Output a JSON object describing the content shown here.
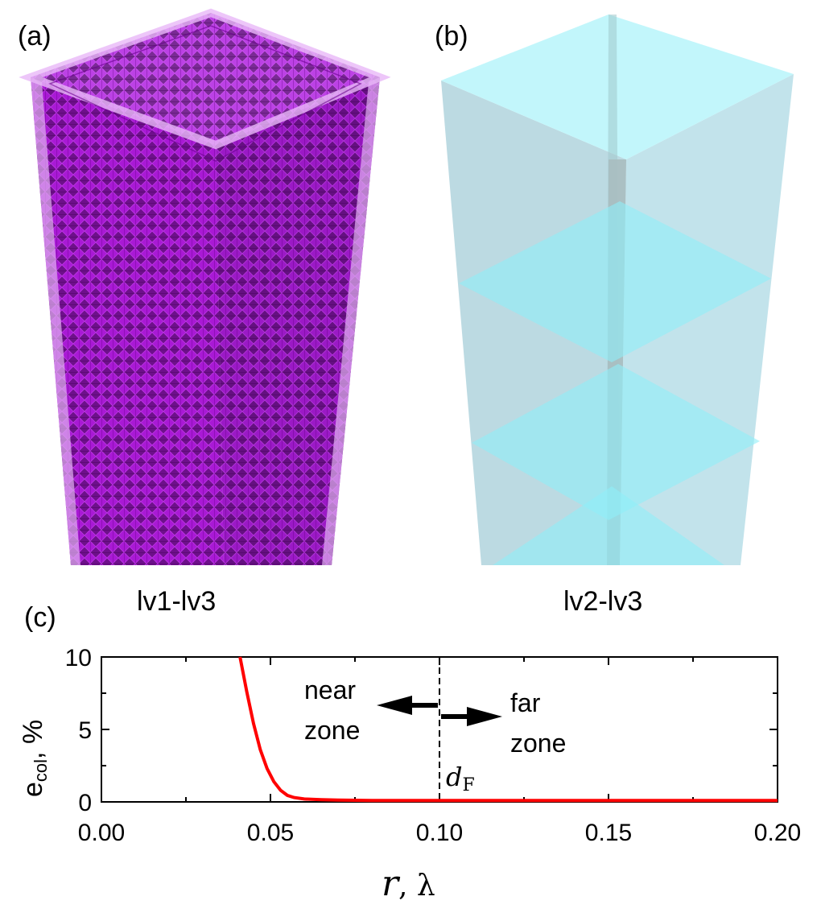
{
  "panels": {
    "a": {
      "label": "(a)",
      "caption": "lv1-lv3",
      "color": "#a000d0"
    },
    "b": {
      "label": "(b)",
      "caption": "lv2-lv3",
      "color": "#8fe8f0"
    },
    "c": {
      "label": "(c)"
    }
  },
  "chart_data": {
    "type": "line",
    "xlabel_var": "r",
    "xlabel_unit": ", λ",
    "ylabel_main": "e",
    "ylabel_sub": "col",
    "ylabel_unit": ", %",
    "xlim": [
      0.0,
      0.2
    ],
    "ylim": [
      0,
      10
    ],
    "x_ticks": [
      "0.00",
      "0.05",
      "0.10",
      "0.15",
      "0.20"
    ],
    "y_ticks": [
      "0",
      "5",
      "10"
    ],
    "grid": false,
    "series": [
      {
        "color": "#ff0000",
        "x": [
          0.041,
          0.043,
          0.045,
          0.047,
          0.049,
          0.051,
          0.053,
          0.055,
          0.057,
          0.06,
          0.065,
          0.07,
          0.08,
          0.1,
          0.15,
          0.2
        ],
        "y": [
          10.0,
          7.6,
          5.4,
          3.6,
          2.3,
          1.4,
          0.8,
          0.45,
          0.3,
          0.2,
          0.15,
          0.12,
          0.1,
          0.1,
          0.1,
          0.1
        ]
      }
    ],
    "annotations": {
      "divider_x": 0.1,
      "divider_label_main": "d",
      "divider_label_sub": "F",
      "near_zone": [
        "near",
        "zone"
      ],
      "far_zone": [
        "far",
        "zone"
      ]
    }
  }
}
